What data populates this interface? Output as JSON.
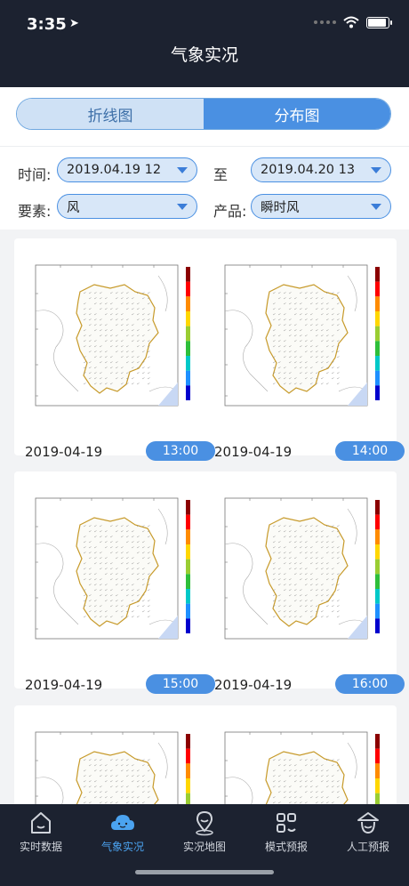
{
  "status": {
    "time": "3:35"
  },
  "header": {
    "title": "气象实况"
  },
  "segment": {
    "tabs": [
      "折线图",
      "分布图"
    ],
    "active_index": 1
  },
  "filters": {
    "time_label": "时间:",
    "start": "2019.04.19 12",
    "to_label": "至",
    "end": "2019.04.20 13",
    "element_label": "要素:",
    "element": "风",
    "product_label": "产品:",
    "product": "瞬时风"
  },
  "cards": [
    {
      "date": "2019-04-19",
      "time": "13:00"
    },
    {
      "date": "2019-04-19",
      "time": "14:00"
    },
    {
      "date": "2019-04-19",
      "time": "15:00"
    },
    {
      "date": "2019-04-19",
      "time": "16:00"
    }
  ],
  "colorbar": [
    "#8b0000",
    "#ff0000",
    "#ff8c00",
    "#ffd700",
    "#9acd32",
    "#2ebf3a",
    "#00c8c8",
    "#1e90ff",
    "#0000cd"
  ],
  "tabbar": {
    "items": [
      "实时数据",
      "气象实况",
      "实况地图",
      "模式预报",
      "人工预报"
    ],
    "active_index": 1
  }
}
